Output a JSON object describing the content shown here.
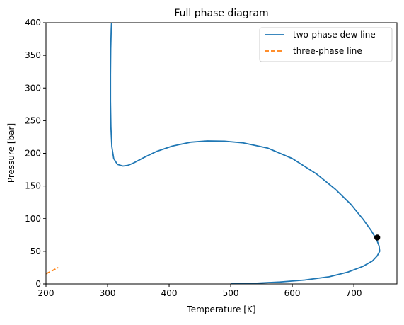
{
  "chart_data": {
    "type": "line",
    "title": "Full phase diagram",
    "xlabel": "Temperature [K]",
    "ylabel": "Pressure [bar]",
    "xlim": [
      200,
      770
    ],
    "ylim": [
      0,
      400
    ],
    "x_ticks": [
      200,
      300,
      400,
      500,
      600,
      700
    ],
    "y_ticks": [
      0,
      50,
      100,
      150,
      200,
      250,
      300,
      350,
      400
    ],
    "grid": false,
    "legend_position": "top-right",
    "series": [
      {
        "name": "two-phase dew line",
        "color": "#1f77b4",
        "style": "solid",
        "points": [
          [
            500,
            0.2
          ],
          [
            540,
            1
          ],
          [
            580,
            3
          ],
          [
            620,
            6
          ],
          [
            660,
            11
          ],
          [
            690,
            18
          ],
          [
            715,
            27
          ],
          [
            730,
            35
          ],
          [
            738,
            43
          ],
          [
            742,
            50
          ],
          [
            741,
            58
          ],
          [
            737,
            68
          ],
          [
            728,
            82
          ],
          [
            715,
            99
          ],
          [
            695,
            122
          ],
          [
            670,
            145
          ],
          [
            640,
            168
          ],
          [
            600,
            192
          ],
          [
            560,
            208
          ],
          [
            520,
            216
          ],
          [
            490,
            218.5
          ],
          [
            462,
            219
          ],
          [
            435,
            217
          ],
          [
            405,
            211
          ],
          [
            380,
            203
          ],
          [
            360,
            194
          ],
          [
            342,
            185
          ],
          [
            333,
            181.5
          ],
          [
            325,
            180.5
          ],
          [
            316,
            183
          ],
          [
            310,
            192
          ],
          [
            307,
            210
          ],
          [
            305.5,
            240
          ],
          [
            304.8,
            280
          ],
          [
            304.8,
            320
          ],
          [
            305.2,
            360
          ],
          [
            306,
            390
          ],
          [
            306.5,
            400
          ]
        ]
      },
      {
        "name": "three-phase line",
        "color": "#ff7f0e",
        "style": "dashed",
        "points": [
          [
            200,
            15.5
          ],
          [
            220,
            25
          ]
        ]
      }
    ],
    "markers": [
      {
        "x": 738,
        "y": 71,
        "color": "#000000"
      }
    ]
  }
}
